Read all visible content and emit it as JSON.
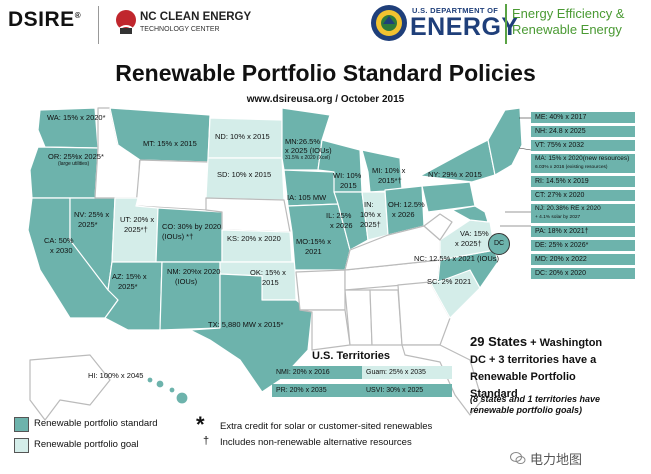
{
  "header": {
    "dsire": "DSIRE",
    "dsire_mark": "®",
    "nccetc_line1": "NC CLEAN ENERGY",
    "nccetc_line2": "TECHNOLOGY CENTER",
    "doe_line1": "U.S. DEPARTMENT OF",
    "doe_line2": "ENERGY",
    "eere_line1": "Energy Efficiency &",
    "eere_line2": "Renewable Energy"
  },
  "title": "Renewable Portfolio Standard Policies",
  "subtitle": "www.dsireusa.org / October 2015",
  "colors": {
    "standard": "#6db3ac",
    "goal": "#d4ede9",
    "none": "#ffffff",
    "doe_blue": "#1f3f7a",
    "eere_green": "#4a9a33"
  },
  "states": {
    "WA": "WA: 15% x 2020*",
    "OR_1": "OR: 25%x 2025*",
    "OR_2": "(large utilities)",
    "MT": "MT: 15% x 2015",
    "ND": "ND: 10% x 2015",
    "MN_1": "MN:26.5%",
    "MN_2": "x 2025 (IOUs)",
    "MN_3": "31.5% x 2020 (Xcel)",
    "SD": "SD: 10% x 2015",
    "WI_1": "WI: 10%",
    "WI_2": "2015",
    "MI_1": "MI: 10% x",
    "MI_2": "2015*†",
    "NY": "NY: 29% x 2015",
    "IA": "IA: 105 MW",
    "IL_1": "IL: 25%",
    "IL_2": "x 2026",
    "IN_1": "IN:",
    "IN_2": "10% x",
    "IN_3": "2025†",
    "OH_1": "OH: 12.5%",
    "OH_2": "x 2026",
    "NV_1": "NV: 25% x",
    "NV_2": "2025*",
    "UT_1": "UT: 20% x",
    "UT_2": "2025*†",
    "CO_1": "CO: 30% by 2020",
    "CO_2": "(IOUs) *†",
    "CA_1": "CA: 50%",
    "CA_2": "x 2030",
    "KS": "KS: 20% x 2020",
    "MO_1": "MO:15% x",
    "MO_2": "2021",
    "VA_1": "VA: 15%",
    "VA_2": "x 2025†",
    "AZ_1": "AZ: 15% x",
    "AZ_2": "2025*",
    "NM_1": "NM: 20%x 2020",
    "NM_2": "(IOUs)",
    "OK_1": "OK: 15% x",
    "OK_2": "2015",
    "NC": "NC: 12.5% x 2021 (IOUs)",
    "SC": "SC: 2% 2021",
    "TX": "TX: 5,880 MW x 2015*",
    "HI": "HI: 100% x 2045",
    "DC_circle": "DC"
  },
  "northeast": [
    "ME: 40% x 2017",
    "NH: 24.8 x 2025",
    "VT: 75% x 2032",
    "MA: 15% x 2020(new resources)",
    "6.03% x 2016 (existing resources)",
    "RI: 14.5% x 2019",
    "CT: 27% x 2020",
    "NJ: 20.38% RE x 2020",
    "+ 4.1% solar by 2027",
    "PA: 18% x 2021†",
    "DE: 25% x 2026*",
    "MD: 20% x 2022",
    "DC: 20% x 2020"
  ],
  "territories": {
    "title": "U.S. Territories",
    "nmi": "NMI: 20% x 2016",
    "guam": "Guam: 25% x 2035",
    "pr": "PR: 20% x 2035",
    "usvi": "USVI: 30% x 2025"
  },
  "summary": {
    "line1a": "29 States",
    "line1b": " + Washington",
    "line2": "DC + 3 territories have a",
    "line3": "Renewable Portfolio",
    "line4": "Standard",
    "note1": "(8 states and 1 territories have",
    "note2": "renewable portfolio goals)"
  },
  "legend": {
    "standard": "Renewable portfolio standard",
    "goal": "Renewable portfolio goal",
    "star_symbol": "*",
    "star_text": "Extra credit for solar or customer-sited renewables",
    "dagger_symbol": "†",
    "dagger_text": "Includes non-renewable alternative resources"
  },
  "watermark": "电力地图"
}
